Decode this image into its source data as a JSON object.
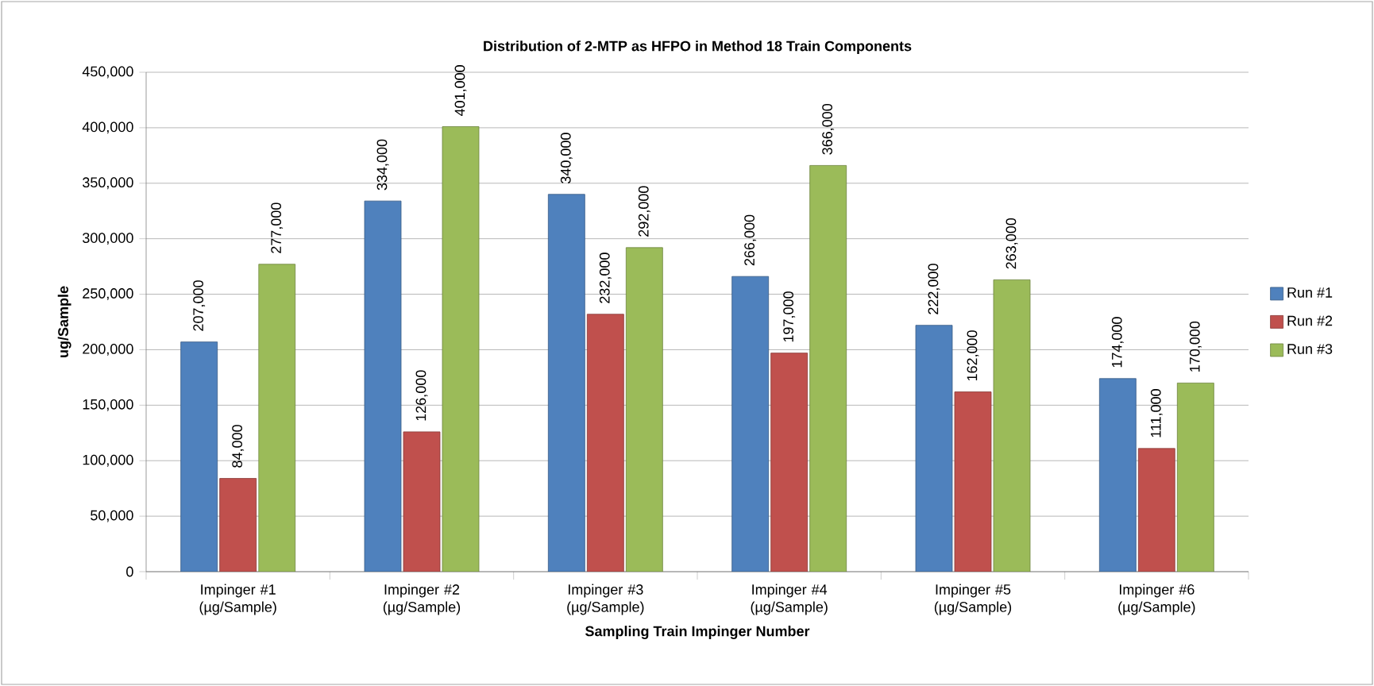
{
  "chart_data": {
    "type": "bar",
    "title": "Distribution of 2-MTP as HFPO in Method 18 Train Components",
    "xlabel": "Sampling Train Impinger Number",
    "ylabel": "ug/Sample",
    "categories": [
      "Impinger #1 (µg/Sample)",
      "Impinger #2 (µg/Sample)",
      "Impinger #3 (µg/Sample)",
      "Impinger #4 (µg/Sample)",
      "Impinger #5 (µg/Sample)",
      "Impinger #6 (µg/Sample)"
    ],
    "series": [
      {
        "name": "Run #1",
        "color": "#4f81bd",
        "values": [
          207000,
          334000,
          340000,
          266000,
          222000,
          174000
        ],
        "value_labels": [
          "207,000",
          "334,000",
          "340,000",
          "266,000",
          "222,000",
          "174,000"
        ]
      },
      {
        "name": "Run #2",
        "color": "#c0504d",
        "values": [
          84000,
          126000,
          232000,
          197000,
          162000,
          111000
        ],
        "value_labels": [
          "84,000",
          "126,000",
          "232,000",
          "197,000",
          "162,000",
          "111,000"
        ]
      },
      {
        "name": "Run #3",
        "color": "#9bbb59",
        "values": [
          277000,
          401000,
          292000,
          366000,
          263000,
          170000
        ],
        "value_labels": [
          "277,000",
          "401,000",
          "292,000",
          "366,000",
          "263,000",
          "170,000"
        ]
      }
    ],
    "ylim": [
      0,
      450000
    ],
    "yticks": [
      {
        "value": 0,
        "label": "0"
      },
      {
        "value": 50000,
        "label": "50,000"
      },
      {
        "value": 100000,
        "label": "100,000"
      },
      {
        "value": 150000,
        "label": "150,000"
      },
      {
        "value": 200000,
        "label": "200,000"
      },
      {
        "value": 250000,
        "label": "250,000"
      },
      {
        "value": 300000,
        "label": "300,000"
      },
      {
        "value": 350000,
        "label": "350,000"
      },
      {
        "value": 400000,
        "label": "400,000"
      },
      {
        "value": 450000,
        "label": "450,000"
      }
    ],
    "grid": "y",
    "legend": "right"
  }
}
